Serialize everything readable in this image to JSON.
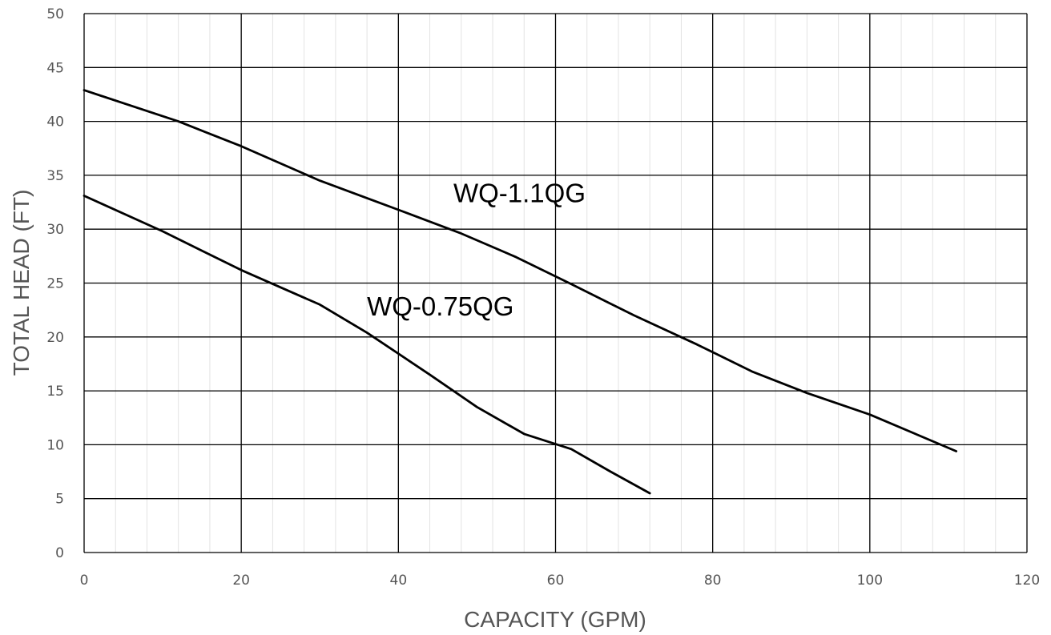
{
  "chart_data": {
    "type": "line",
    "title": "",
    "xlabel": "CAPACITY (GPM)",
    "ylabel": "TOTAL HEAD (FT)",
    "xlim": [
      0,
      120
    ],
    "ylim": [
      0,
      50
    ],
    "x_ticks": [
      0,
      20,
      40,
      60,
      80,
      100,
      120
    ],
    "y_ticks": [
      0,
      5,
      10,
      15,
      20,
      25,
      30,
      35,
      40,
      45,
      50
    ],
    "x_minor_step": 4,
    "grid": true,
    "legend": "none",
    "series": [
      {
        "name": "WQ-1.1QG",
        "x": [
          0,
          12,
          20,
          30,
          40,
          48,
          55,
          62,
          70,
          78,
          85,
          92,
          100,
          111
        ],
        "y": [
          42.9,
          40,
          37.7,
          34.5,
          31.8,
          29.6,
          27.4,
          24.9,
          22,
          19.3,
          16.8,
          14.8,
          12.8,
          9.4
        ]
      },
      {
        "name": "WQ-0.75QG",
        "x": [
          0,
          10,
          20,
          30,
          36,
          44,
          50,
          56,
          62,
          67,
          72
        ],
        "y": [
          33.1,
          29.8,
          26.2,
          23,
          20.4,
          16.5,
          13.5,
          11,
          9.6,
          7.5,
          5.5
        ]
      }
    ],
    "annotations": [
      {
        "text": "WQ-1.1QG",
        "x": 47,
        "y": 32.5
      },
      {
        "text": "WQ-0.75QG",
        "x": 36,
        "y": 22
      }
    ]
  }
}
